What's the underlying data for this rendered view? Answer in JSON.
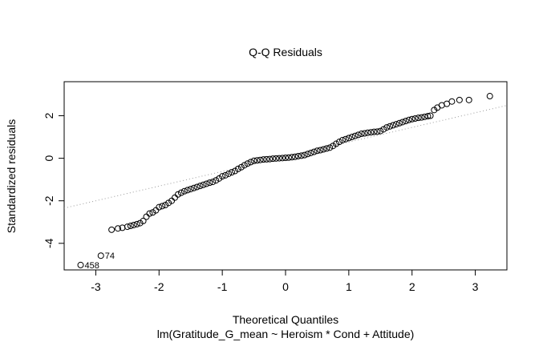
{
  "chart_data": {
    "type": "scatter",
    "title": "Q-Q Residuals",
    "xlabel": "Theoretical Quantiles",
    "ylabel": "Standardized residuals",
    "subtitle": "lm(Gratitude_G_mean ~ Heroism * Cond + Attitude)",
    "xlim": [
      -3.5,
      3.5
    ],
    "ylim": [
      -5.25,
      3.6
    ],
    "xticks": [
      -3,
      -2,
      -1,
      0,
      1,
      2,
      3
    ],
    "yticks": [
      -4,
      -2,
      0,
      2
    ],
    "grid": false,
    "reference_line": {
      "intercept": 0.07,
      "slope": 0.69,
      "style": "dotted",
      "color": "#999999"
    },
    "labeled_points": [
      {
        "label": "458",
        "x": -3.24,
        "y": -5.02
      },
      {
        "label": "74",
        "x": -2.92,
        "y": -4.58
      }
    ],
    "points": [
      [
        -2.75,
        -3.36
      ],
      [
        -2.65,
        -3.3
      ],
      [
        -2.58,
        -3.27
      ],
      [
        -2.5,
        -3.22
      ],
      [
        -2.45,
        -3.18
      ],
      [
        -2.4,
        -3.14
      ],
      [
        -2.35,
        -3.1
      ],
      [
        -2.3,
        -3.05
      ],
      [
        -2.25,
        -2.95
      ],
      [
        -2.2,
        -2.75
      ],
      [
        -2.15,
        -2.6
      ],
      [
        -2.1,
        -2.55
      ],
      [
        -2.05,
        -2.45
      ],
      [
        -2.0,
        -2.3
      ],
      [
        -1.95,
        -2.25
      ],
      [
        -1.9,
        -2.2
      ],
      [
        -1.85,
        -2.1
      ],
      [
        -1.8,
        -2.0
      ],
      [
        -1.75,
        -1.85
      ],
      [
        -1.7,
        -1.7
      ],
      [
        -1.65,
        -1.62
      ],
      [
        -1.6,
        -1.55
      ],
      [
        -1.55,
        -1.5
      ],
      [
        -1.5,
        -1.45
      ],
      [
        -1.45,
        -1.4
      ],
      [
        -1.4,
        -1.35
      ],
      [
        -1.35,
        -1.3
      ],
      [
        -1.3,
        -1.25
      ],
      [
        -1.25,
        -1.2
      ],
      [
        -1.2,
        -1.15
      ],
      [
        -1.15,
        -1.11
      ],
      [
        -1.1,
        -1.04
      ],
      [
        -1.05,
        -0.95
      ],
      [
        -1.0,
        -0.85
      ],
      [
        -0.95,
        -0.8
      ],
      [
        -0.9,
        -0.73
      ],
      [
        -0.85,
        -0.66
      ],
      [
        -0.8,
        -0.6
      ],
      [
        -0.75,
        -0.5
      ],
      [
        -0.7,
        -0.42
      ],
      [
        -0.65,
        -0.33
      ],
      [
        -0.6,
        -0.25
      ],
      [
        -0.55,
        -0.18
      ],
      [
        -0.5,
        -0.12
      ],
      [
        -0.45,
        -0.1
      ],
      [
        -0.4,
        -0.08
      ],
      [
        -0.35,
        -0.06
      ],
      [
        -0.3,
        -0.05
      ],
      [
        -0.25,
        -0.04
      ],
      [
        -0.2,
        -0.02
      ],
      [
        -0.15,
        -0.01
      ],
      [
        -0.1,
        0.0
      ],
      [
        -0.05,
        0.01
      ],
      [
        0.0,
        0.02
      ],
      [
        0.05,
        0.03
      ],
      [
        0.1,
        0.05
      ],
      [
        0.15,
        0.07
      ],
      [
        0.2,
        0.1
      ],
      [
        0.25,
        0.12
      ],
      [
        0.3,
        0.15
      ],
      [
        0.35,
        0.2
      ],
      [
        0.4,
        0.25
      ],
      [
        0.45,
        0.3
      ],
      [
        0.5,
        0.35
      ],
      [
        0.55,
        0.38
      ],
      [
        0.6,
        0.42
      ],
      [
        0.65,
        0.46
      ],
      [
        0.7,
        0.5
      ],
      [
        0.75,
        0.58
      ],
      [
        0.8,
        0.68
      ],
      [
        0.85,
        0.77
      ],
      [
        0.9,
        0.85
      ],
      [
        0.95,
        0.9
      ],
      [
        1.0,
        0.95
      ],
      [
        1.05,
        1.0
      ],
      [
        1.1,
        1.05
      ],
      [
        1.15,
        1.1
      ],
      [
        1.2,
        1.15
      ],
      [
        1.25,
        1.17
      ],
      [
        1.3,
        1.2
      ],
      [
        1.35,
        1.22
      ],
      [
        1.4,
        1.24
      ],
      [
        1.45,
        1.25
      ],
      [
        1.5,
        1.28
      ],
      [
        1.55,
        1.36
      ],
      [
        1.6,
        1.45
      ],
      [
        1.65,
        1.5
      ],
      [
        1.7,
        1.55
      ],
      [
        1.75,
        1.6
      ],
      [
        1.8,
        1.65
      ],
      [
        1.85,
        1.7
      ],
      [
        1.9,
        1.75
      ],
      [
        1.95,
        1.8
      ],
      [
        2.0,
        1.84
      ],
      [
        2.05,
        1.87
      ],
      [
        2.1,
        1.9
      ],
      [
        2.15,
        1.92
      ],
      [
        2.2,
        1.95
      ],
      [
        2.25,
        1.98
      ],
      [
        2.29,
        2.0
      ],
      [
        2.35,
        2.27
      ],
      [
        2.4,
        2.38
      ],
      [
        2.47,
        2.49
      ],
      [
        2.55,
        2.56
      ],
      [
        2.63,
        2.67
      ],
      [
        2.75,
        2.74
      ],
      [
        2.9,
        2.74
      ],
      [
        3.23,
        2.92
      ]
    ]
  }
}
